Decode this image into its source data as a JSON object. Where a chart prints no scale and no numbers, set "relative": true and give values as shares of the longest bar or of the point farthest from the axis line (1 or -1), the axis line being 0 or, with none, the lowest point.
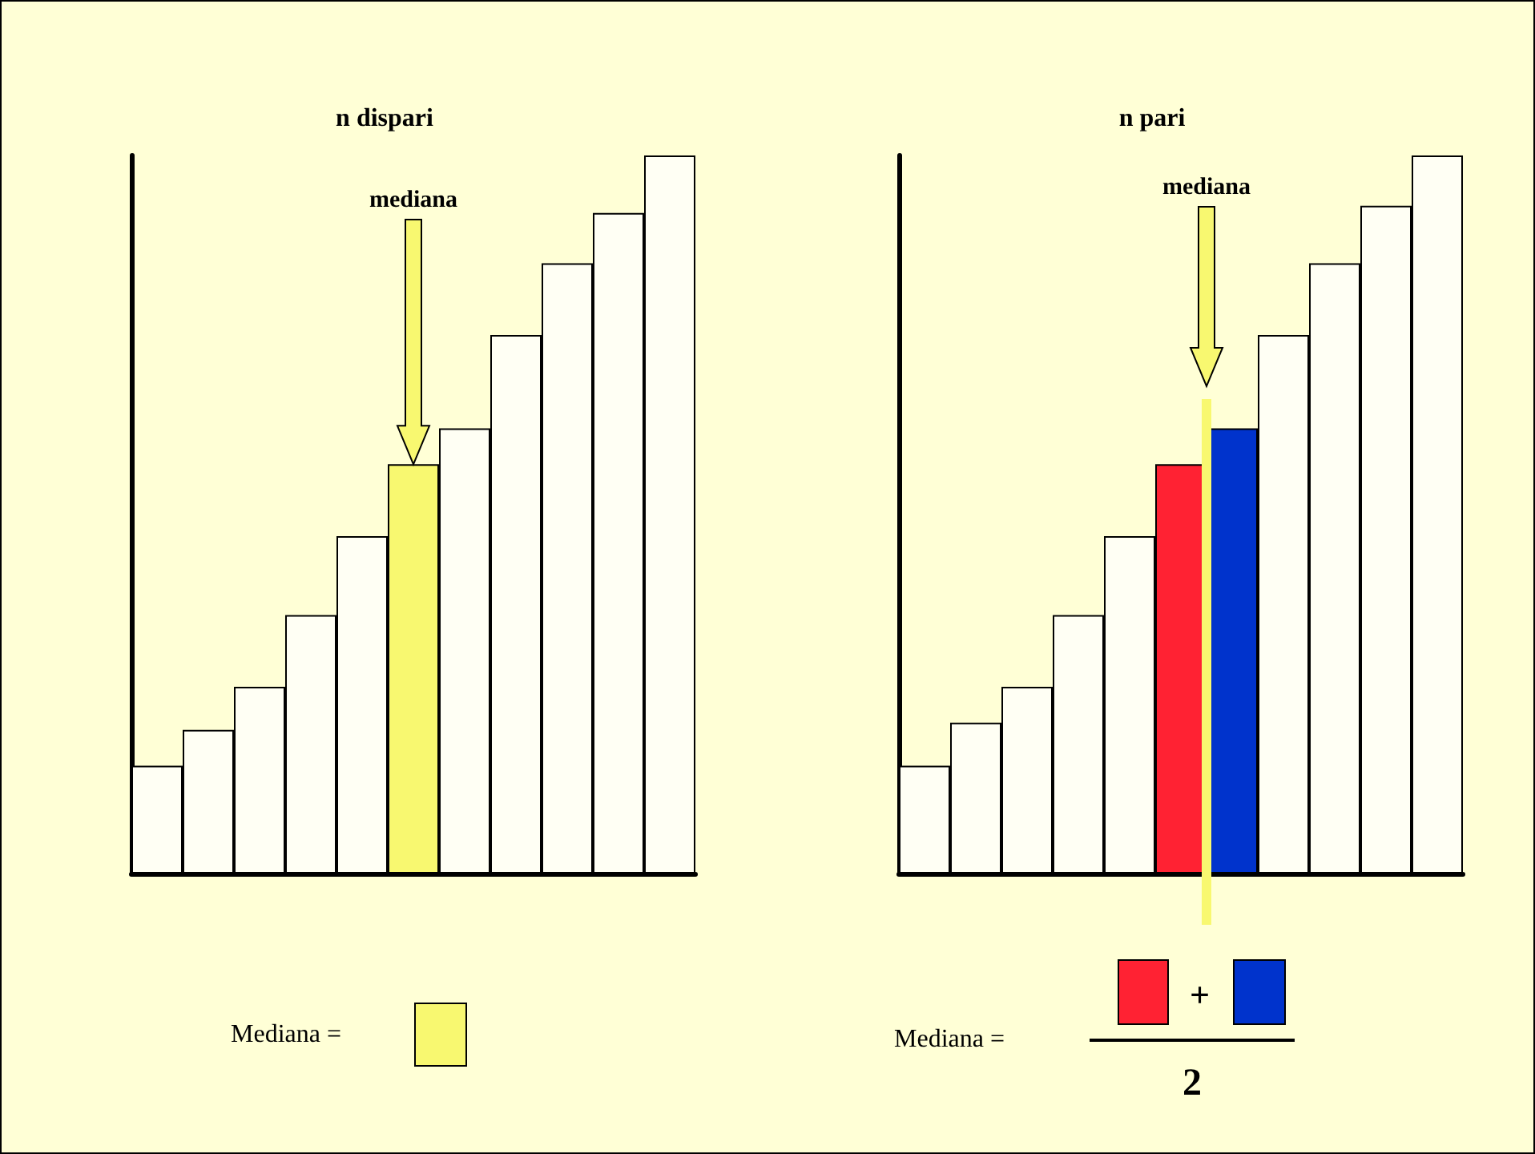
{
  "chart_data": [
    {
      "type": "bar",
      "title": "n dispari",
      "relative": true,
      "categories": [
        null,
        null,
        null,
        null,
        null,
        null,
        null,
        null,
        null,
        null,
        null
      ],
      "values": [
        0.15,
        0.2,
        0.26,
        0.36,
        0.47,
        0.57,
        0.62,
        0.75,
        0.85,
        0.92,
        1
      ],
      "colors": [
        "#fffff4",
        "#fffff4",
        "#fffff4",
        "#fffff4",
        "#fffff4",
        "#f8f870",
        "#fffff4",
        "#fffff4",
        "#fffff4",
        "#fffff4",
        "#fffff4"
      ],
      "annotations": [
        "mediana",
        "Mediana ="
      ]
    },
    {
      "type": "bar",
      "title": "n pari",
      "relative": true,
      "categories": [
        null,
        null,
        null,
        null,
        null,
        null,
        null,
        null,
        null,
        null,
        null
      ],
      "values": [
        0.15,
        0.21,
        0.26,
        0.36,
        0.47,
        0.57,
        0.62,
        0.75,
        0.85,
        0.93,
        1
      ],
      "colors": [
        "#fffff4",
        "#fffff4",
        "#fffff4",
        "#fffff4",
        "#fffff4",
        "#ff2233",
        "#0033cc",
        "#fffff4",
        "#fffff4",
        "#fffff4",
        "#fffff4"
      ],
      "annotations": [
        "mediana",
        "Mediana =",
        "+",
        "2"
      ]
    }
  ]
}
